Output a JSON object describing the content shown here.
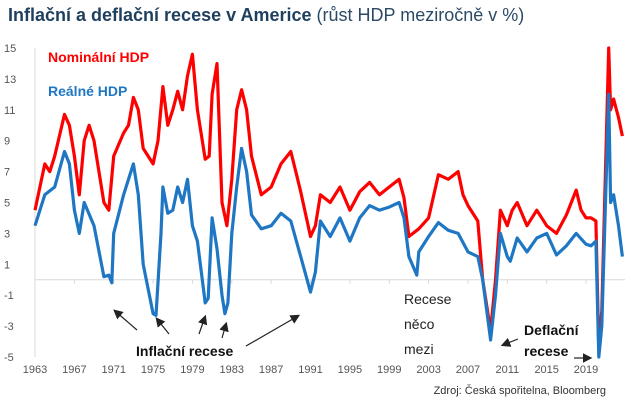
{
  "chart_data": {
    "type": "line",
    "title": "Inflační a deflační recese v Americe",
    "subtitle": "(růst HDP meziročně v %)",
    "xlabel": "",
    "ylabel": "",
    "ylim": [
      -5,
      15
    ],
    "xlim": [
      1963,
      2022.7
    ],
    "yticks": [
      "15",
      "13",
      "11",
      "9",
      "7",
      "5",
      "3",
      "1",
      "-1",
      "-3",
      "-5"
    ],
    "xticks": [
      "1963",
      "1967",
      "1971",
      "1975",
      "1979",
      "1983",
      "1987",
      "1991",
      "1995",
      "1999",
      "2003",
      "2007",
      "2011",
      "2015",
      "2019"
    ],
    "grid": false,
    "legend": "top-left",
    "series": [
      {
        "name": "Nominální HDP",
        "color": "#ff0000",
        "x": [
          1963,
          1964,
          1964.5,
          1965,
          1966,
          1966.5,
          1967,
          1967.5,
          1968,
          1968.5,
          1969,
          1970,
          1970.5,
          1971,
          1972,
          1972.5,
          1973,
          1973.5,
          1974,
          1975,
          1975.5,
          1976,
          1976.5,
          1977,
          1977.5,
          1978,
          1978.5,
          1979,
          1979.5,
          1980,
          1980.3,
          1980.7,
          1981,
          1981.5,
          1982,
          1982.5,
          1983,
          1983.5,
          1984,
          1984.5,
          1985,
          1986,
          1987,
          1988,
          1989,
          1989.5,
          1990,
          1991,
          1991.5,
          1992,
          1993,
          1994,
          1995,
          1996,
          1997,
          1998,
          1999,
          2000,
          2000.5,
          2001,
          2002,
          2003,
          2004,
          2005,
          2006,
          2006.5,
          2007,
          2008,
          2008.5,
          2009.3,
          2009.8,
          2010.3,
          2011,
          2011.5,
          2012,
          2013,
          2014,
          2015,
          2016,
          2017,
          2018,
          2018.5,
          2019,
          2019.5,
          2020,
          2020.3,
          2020.6,
          2021.3,
          2021.5,
          2021.8,
          2022.3,
          2022.7
        ],
        "y": [
          4.5,
          7.5,
          7,
          8,
          10.7,
          10,
          8,
          5.5,
          9,
          10,
          9,
          5,
          4.5,
          8,
          9.5,
          10,
          11.8,
          11,
          8.5,
          7.5,
          9,
          12.5,
          10,
          11,
          12.2,
          11,
          13.2,
          14.6,
          11,
          9,
          7.8,
          8,
          12,
          14,
          5,
          3.5,
          6.5,
          11,
          12.3,
          11,
          8,
          5.5,
          6,
          7.5,
          8.3,
          7,
          5.7,
          2.8,
          3.5,
          5.5,
          5,
          6,
          4.5,
          5.7,
          6.3,
          5.5,
          6,
          6.5,
          5.3,
          2.8,
          3.3,
          4,
          6.8,
          6.5,
          7,
          5.5,
          4.8,
          3.8,
          0,
          -3.3,
          0,
          4.5,
          3.5,
          4.5,
          5,
          3.5,
          4.5,
          3.5,
          3,
          4.2,
          5.8,
          4.5,
          4,
          4,
          3.8,
          -4.5,
          -2,
          15,
          11,
          11.7,
          10.5,
          9.3
        ]
      },
      {
        "name": "Reálné HDP",
        "color": "#1f77c4",
        "x": [
          1963,
          1964,
          1965,
          1966,
          1966.5,
          1967,
          1967.5,
          1968,
          1969,
          1970,
          1970.5,
          1970.8,
          1971,
          1972,
          1973,
          1973.5,
          1974,
          1975,
          1975.3,
          1975.8,
          1976,
          1976.5,
          1977,
          1977.5,
          1978,
          1978.5,
          1979,
          1979.5,
          1980,
          1980.3,
          1980.6,
          1981,
          1981.5,
          1982,
          1982.3,
          1982.6,
          1983,
          1983.5,
          1984,
          1984.5,
          1985,
          1986,
          1987,
          1988,
          1989,
          1990,
          1991,
          1991.5,
          1992,
          1993,
          1994,
          1995,
          1996,
          1997,
          1998,
          1999,
          2000,
          2000.5,
          2001,
          2001.8,
          2002,
          2003,
          2004,
          2005,
          2006,
          2007,
          2008,
          2008.5,
          2009.3,
          2009.8,
          2010.3,
          2011,
          2011.3,
          2012,
          2013,
          2014,
          2015,
          2016,
          2017,
          2018,
          2019,
          2019.5,
          2020,
          2020.3,
          2020.6,
          2021.3,
          2021.5,
          2021.8,
          2022.3,
          2022.7
        ],
        "y": [
          3.5,
          5.5,
          6,
          8.3,
          7.5,
          4.5,
          3,
          5,
          3.5,
          0.2,
          0.3,
          -0.2,
          3,
          5.5,
          7.5,
          5.5,
          1,
          -2.2,
          -2.3,
          3,
          6,
          4.3,
          4.5,
          6,
          5,
          6.5,
          3.5,
          2.5,
          0,
          -1.5,
          -1.2,
          4,
          2,
          -1,
          -2.2,
          -1.5,
          3,
          6,
          8.5,
          7,
          4.2,
          3.3,
          3.5,
          4.3,
          3.8,
          1.5,
          -0.8,
          0.5,
          3.8,
          2.8,
          4,
          2.5,
          4,
          4.8,
          4.5,
          4.7,
          5,
          4,
          1.5,
          0.3,
          1.8,
          2.8,
          3.7,
          3.2,
          3,
          1.8,
          1.5,
          0,
          -3.9,
          -1,
          3,
          1.5,
          1.2,
          2.7,
          1.8,
          2.7,
          3,
          1.6,
          2.2,
          3,
          2.3,
          2.2,
          2.5,
          -5,
          -3,
          12,
          5,
          5.5,
          3.5,
          1.5
        ]
      }
    ],
    "annotations": {
      "inflation": "Inflační recese",
      "between_1": "Recese",
      "between_2": "něco",
      "between_3": "mezi",
      "deflation_1": "Deflační",
      "deflation_2": "recese"
    },
    "source": "Zdroj: Česká spořitelna, Bloomberg"
  }
}
